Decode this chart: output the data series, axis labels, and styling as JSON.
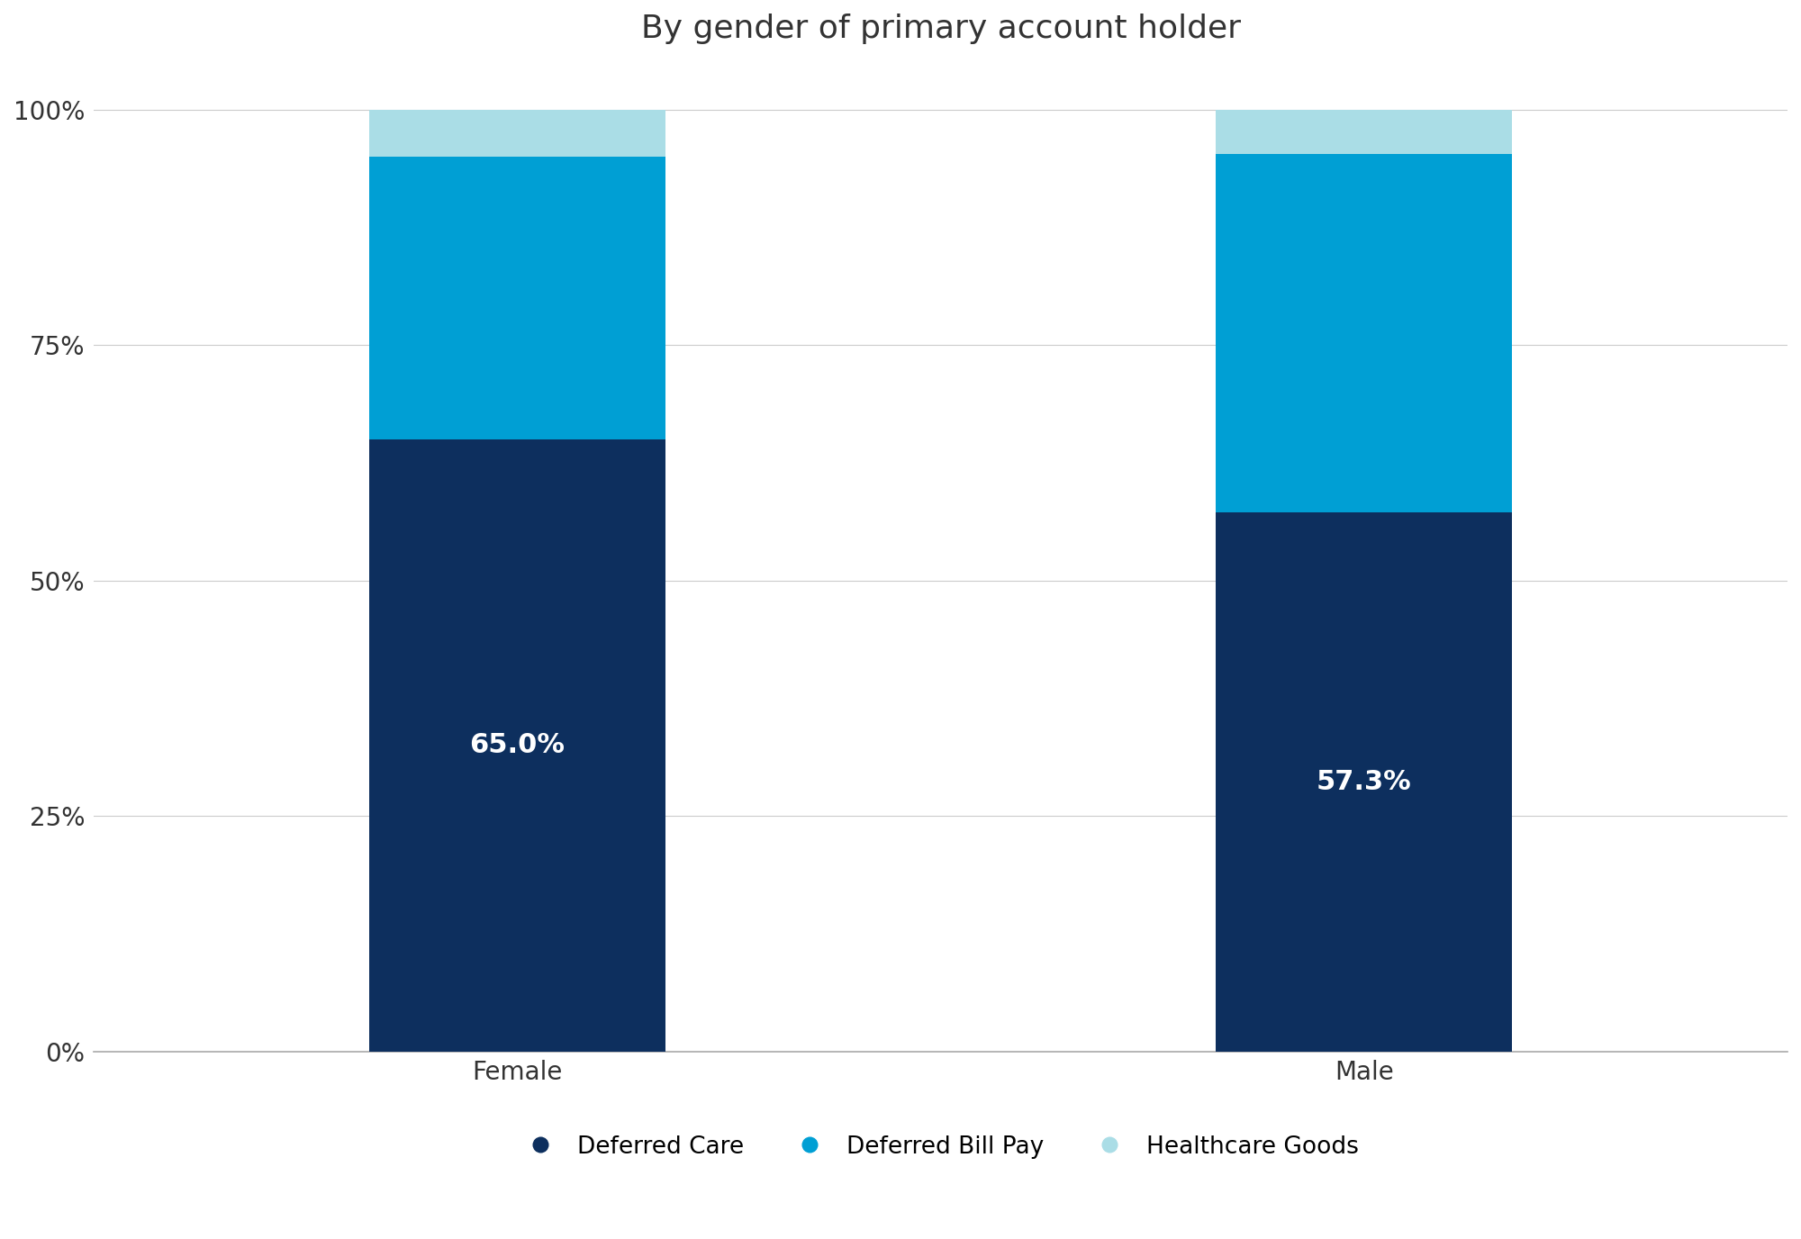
{
  "title": "By gender of primary account holder",
  "categories": [
    "Female",
    "Male"
  ],
  "segments": {
    "Deferred Care": [
      65.0,
      57.3
    ],
    "Deferred Bill Pay": [
      30.0,
      38.0
    ],
    "Healthcare Goods": [
      5.0,
      4.7
    ]
  },
  "colors": {
    "Deferred Care": "#0d2f5e",
    "Deferred Bill Pay": "#009fd4",
    "Healthcare Goods": "#aadde6"
  },
  "labels": {
    "Deferred Care": [
      "65.0%",
      "57.3%"
    ]
  },
  "yticks": [
    0,
    25,
    50,
    75,
    100
  ],
  "ytick_labels": [
    "0%",
    "25%",
    "50%",
    "75%",
    "100%"
  ],
  "title_fontsize": 26,
  "tick_fontsize": 20,
  "legend_fontsize": 19,
  "label_fontsize": 22,
  "background_color": "#ffffff",
  "bar_width": 0.35
}
